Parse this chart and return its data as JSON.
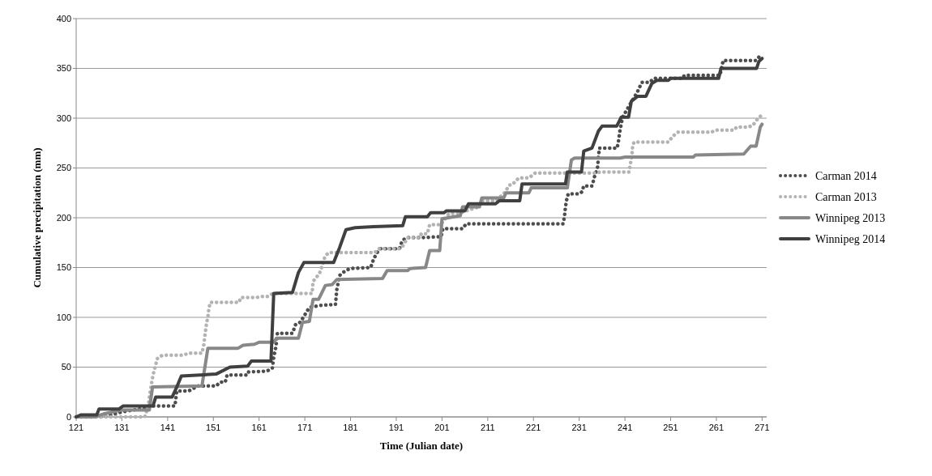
{
  "chart_data": {
    "type": "line",
    "xlabel": "Time (Julian date)",
    "ylabel": "Cumulative precipitation (mm)",
    "xlim": [
      121,
      272
    ],
    "xticks": [
      121,
      131,
      141,
      151,
      161,
      171,
      181,
      191,
      201,
      211,
      221,
      231,
      241,
      251,
      261,
      271
    ],
    "ylim": [
      0,
      400
    ],
    "yticks": [
      0,
      50,
      100,
      150,
      200,
      250,
      300,
      350,
      400
    ],
    "grid": "y",
    "legend": "right",
    "series": [
      {
        "name": "Carman 2014",
        "color": "#4d4d4d",
        "line_style": "dotted",
        "x": [
          121,
          127,
          131,
          136,
          136.6,
          142.6,
          143,
          145.6,
          147.6,
          151.6,
          152.5,
          153.6,
          154,
          158.2,
          158.4,
          162.7,
          163.9,
          164.2,
          164.7,
          165,
          168.3,
          169,
          170,
          172,
          174.4,
          177.7,
          178,
          178.6,
          179.9,
          181,
          185.4,
          186,
          186.8,
          187.5,
          191.7,
          192.3,
          193.3,
          196.5,
          200.8,
          201.2,
          205.5,
          206.3,
          227.5,
          227.8,
          228,
          228.3,
          228.6,
          231,
          231.6,
          232,
          233.8,
          234.4,
          235,
          235.4,
          239.3,
          239.6,
          239.9,
          240.5,
          242,
          243.8,
          244.7,
          246.4,
          247.3,
          253.6,
          254,
          261.8,
          262.2,
          262.5,
          269.7,
          270.6,
          271
        ],
        "values": [
          0,
          0,
          5,
          9,
          11,
          11,
          26,
          26,
          31,
          31,
          35,
          35,
          42,
          42,
          45,
          46,
          49,
          60,
          71,
          84,
          84,
          93,
          95,
          110,
          112,
          113,
          128,
          142,
          147,
          149,
          150,
          158,
          165,
          169,
          169,
          177,
          180,
          180,
          181,
          189,
          189,
          194,
          194,
          202,
          211,
          219,
          224,
          224,
          226,
          232,
          232,
          242,
          250,
          270,
          270,
          277,
          287,
          301,
          313,
          327,
          336,
          336,
          340,
          340,
          343,
          343,
          352,
          358,
          358,
          363,
          363
        ]
      },
      {
        "name": "Carman 2013",
        "color": "#b3b3b3",
        "line_style": "dotted",
        "x": [
          121,
          136,
          136.3,
          136.8,
          137,
          137.5,
          137.8,
          138.3,
          138.8,
          139.9,
          144.4,
          145.6,
          148.5,
          148.9,
          149.2,
          149.5,
          149.8,
          150,
          150.3,
          156.6,
          157,
          160.6,
          161.5,
          163,
          164,
          172.6,
          172.8,
          174.2,
          174.8,
          175.4,
          176.2,
          186.3,
          187.2,
          191.7,
          192.5,
          193.5,
          196,
          196.5,
          197.8,
          198.3,
          200.7,
          202.5,
          205,
          209,
          209.7,
          212.7,
          214.5,
          215.8,
          216.3,
          217.8,
          220,
          221.4,
          234.8,
          235.6,
          241.9,
          242.2,
          242.5,
          242.7,
          243,
          250.5,
          251.5,
          252.6,
          260,
          260.7,
          264.9,
          265.4,
          268,
          269,
          270.3,
          271
        ],
        "values": [
          0,
          0,
          4,
          12,
          20,
          34,
          42,
          51,
          59,
          62,
          62,
          64,
          64,
          72,
          83,
          94,
          100,
          108,
          115,
          115,
          120,
          120,
          121,
          121,
          124,
          124,
          136,
          144,
          152,
          161,
          165,
          165,
          169,
          169,
          172,
          180,
          180,
          184,
          184,
          193,
          193,
          204,
          205,
          211,
          217,
          217,
          224,
          233,
          233,
          240,
          240,
          245,
          245,
          246,
          246,
          254,
          262,
          272,
          276,
          276,
          282,
          286,
          286,
          288,
          288,
          291,
          291,
          293,
          301,
          303
        ]
      },
      {
        "name": "Winnipeg 2013",
        "color": "#888888",
        "line_style": "solid",
        "x": [
          121,
          125,
          127,
          131,
          137,
          137.7,
          148.5,
          149.8,
          156.4,
          157.5,
          160,
          161,
          164.2,
          164.8,
          169.6,
          170.5,
          172,
          172.8,
          174,
          175.5,
          177,
          178,
          188,
          189,
          193.5,
          194,
          197.4,
          198.3,
          200.5,
          201,
          205,
          205.5,
          209.2,
          209.7,
          214.5,
          215,
          220,
          220.5,
          228.4,
          229.3,
          230,
          240,
          241,
          256,
          256.4,
          267,
          268.5,
          269.7,
          270.6,
          271
        ],
        "values": [
          0,
          0,
          3,
          7,
          7,
          30,
          31,
          69,
          69,
          72,
          73,
          75,
          75,
          79,
          79,
          95,
          96,
          118,
          118,
          132,
          133,
          138,
          139,
          147,
          147,
          149,
          150,
          167,
          167,
          199,
          202,
          211,
          211,
          220,
          220,
          225,
          225,
          230,
          230,
          258,
          260,
          260,
          261,
          261,
          263,
          264,
          272,
          272,
          291,
          294
        ]
      },
      {
        "name": "Winnipeg 2014",
        "color": "#404040",
        "line_style": "solid",
        "x": [
          121,
          122,
          125.5,
          126,
          130.4,
          131.3,
          137.8,
          138.4,
          142,
          143,
          144,
          151.6,
          154.6,
          158.5,
          159.3,
          163.6,
          164.2,
          168.3,
          169.6,
          170.8,
          177.3,
          178.6,
          180,
          182,
          186,
          192.4,
          193,
          197.8,
          198.5,
          201.4,
          202,
          206,
          206.8,
          212.7,
          213.5,
          218,
          218.5,
          228,
          228.4,
          231.5,
          232,
          233.8,
          235.2,
          236,
          239.2,
          240.2,
          241.8,
          242.4,
          243.8,
          245.6,
          246.9,
          248,
          250.5,
          251,
          261.5,
          262,
          269.8,
          270.3,
          271
        ],
        "values": [
          0,
          2,
          2,
          8,
          8,
          11,
          11,
          20,
          20,
          30,
          41,
          43,
          50,
          51,
          56,
          56,
          124,
          125,
          145,
          155,
          155,
          170,
          188,
          190,
          191,
          192,
          201,
          201,
          205,
          205,
          207,
          207,
          214,
          214,
          217,
          217,
          234,
          234,
          246,
          246,
          267,
          270,
          287,
          292,
          292,
          301,
          301,
          317,
          322,
          322,
          335,
          338,
          338,
          340,
          340,
          350,
          350,
          357,
          360
        ]
      }
    ]
  }
}
